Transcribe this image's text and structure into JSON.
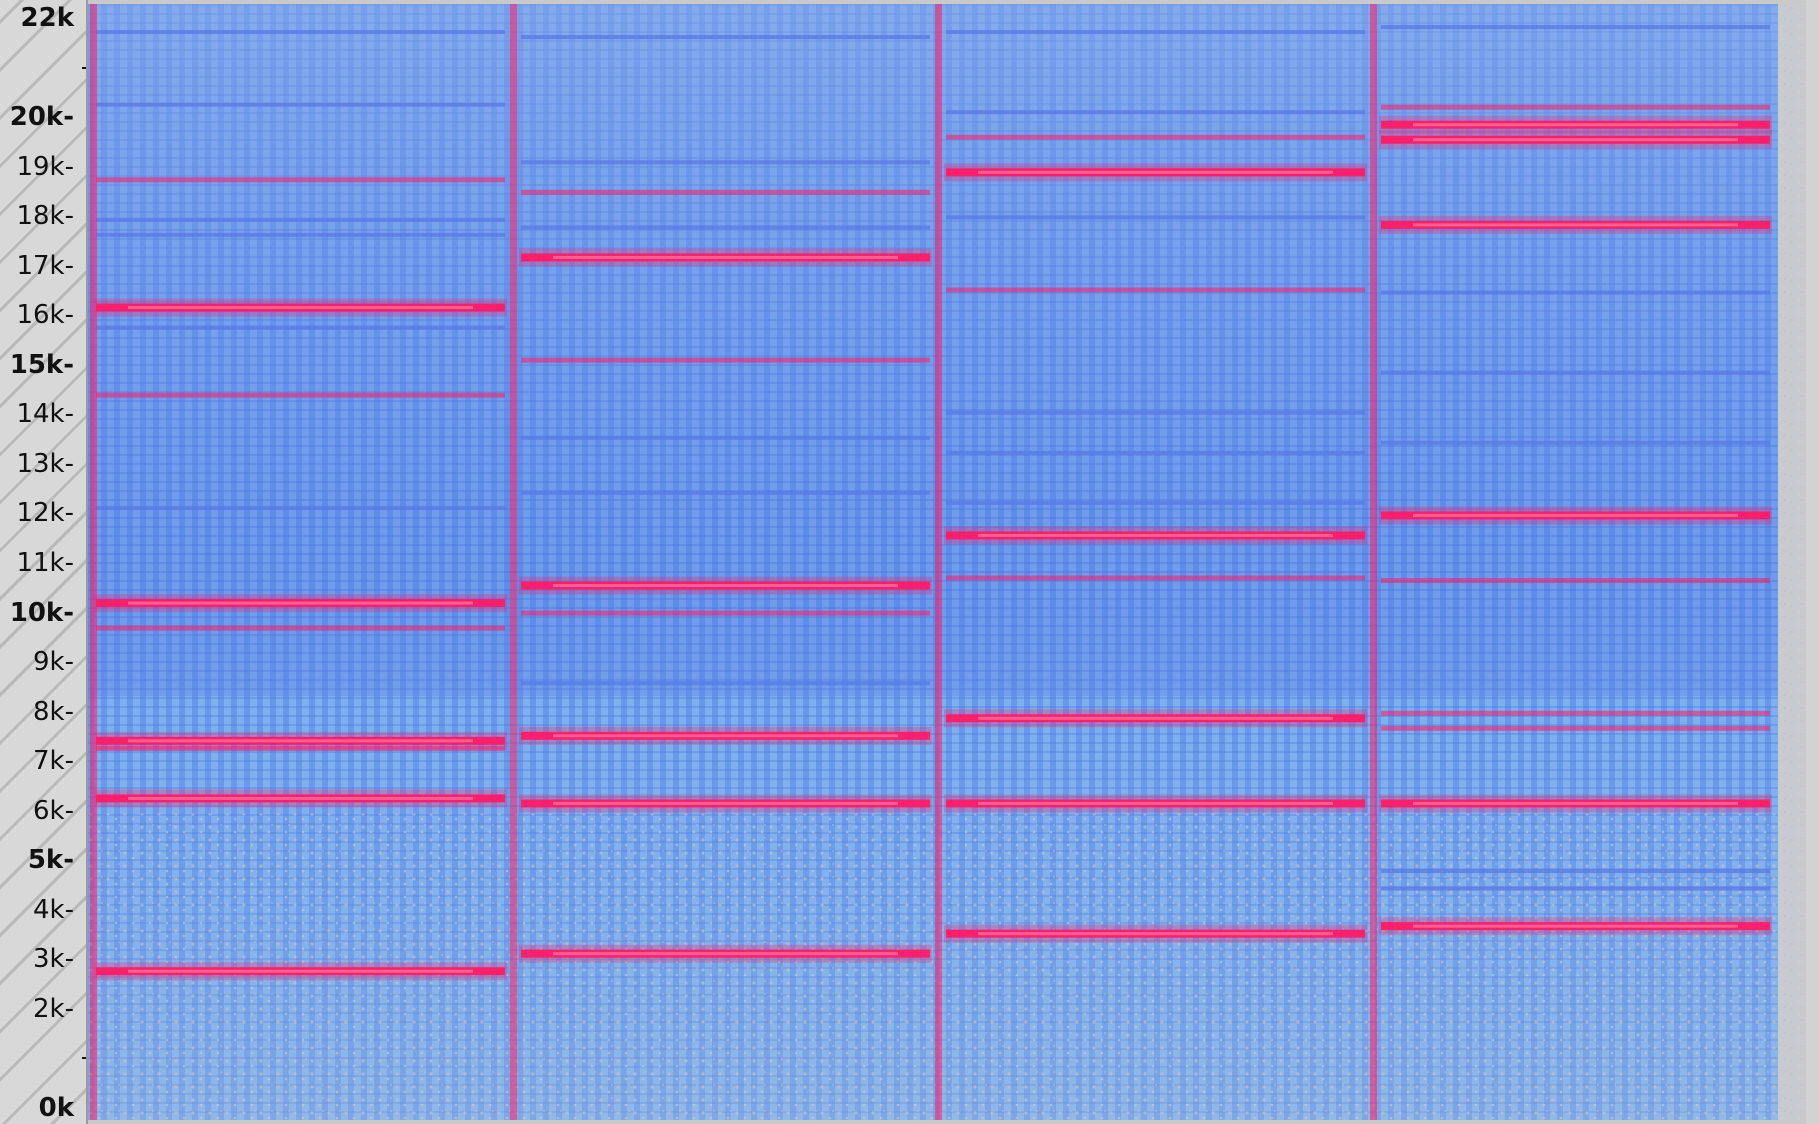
{
  "window": {
    "title": ""
  },
  "frequency_ruler": {
    "unit": "Hz",
    "labels": [
      {
        "text": "22k",
        "hz": 22000,
        "major": true
      },
      {
        "text": "20k-",
        "hz": 20000,
        "major": true
      },
      {
        "text": "19k-",
        "hz": 19000,
        "major": false
      },
      {
        "text": "18k-",
        "hz": 18000,
        "major": false
      },
      {
        "text": "17k-",
        "hz": 17000,
        "major": false
      },
      {
        "text": "16k-",
        "hz": 16000,
        "major": false
      },
      {
        "text": "15k-",
        "hz": 15000,
        "major": true
      },
      {
        "text": "14k-",
        "hz": 14000,
        "major": false
      },
      {
        "text": "13k-",
        "hz": 13000,
        "major": false
      },
      {
        "text": "12k-",
        "hz": 12000,
        "major": false
      },
      {
        "text": "11k-",
        "hz": 11000,
        "major": false
      },
      {
        "text": "10k-",
        "hz": 10000,
        "major": true
      },
      {
        "text": "9k-",
        "hz": 9000,
        "major": false
      },
      {
        "text": "8k-",
        "hz": 8000,
        "major": false
      },
      {
        "text": "7k-",
        "hz": 7000,
        "major": false
      },
      {
        "text": "6k-",
        "hz": 6000,
        "major": false
      },
      {
        "text": "5k-",
        "hz": 5000,
        "major": true
      },
      {
        "text": "4k-",
        "hz": 4000,
        "major": false
      },
      {
        "text": "3k-",
        "hz": 3000,
        "major": false
      },
      {
        "text": "2k-",
        "hz": 2000,
        "major": false
      },
      {
        "text": "0k",
        "hz": 0,
        "major": true
      }
    ],
    "minor_ticks_hz": [
      21000,
      1000
    ]
  },
  "spectrogram": {
    "freq_range_hz": [
      0,
      22000
    ],
    "colors": {
      "background": "#bdbdbd",
      "energy_low": "#78aef0",
      "energy_mid": "#5a78e6",
      "energy_high": "#ff1a66",
      "energy_peak": "#ff6f9a"
    },
    "segments": [
      {
        "strong_tones_hz": [
          16100,
          10200,
          7450,
          6300,
          2850
        ],
        "medium_tones_hz": [
          18650,
          14350,
          9700,
          7300
        ],
        "weak_tones_hz": [
          21600,
          20150,
          17850,
          17550,
          12100,
          15700
        ]
      },
      {
        "strong_tones_hz": [
          17100,
          10550,
          7550,
          6200,
          3200
        ],
        "medium_tones_hz": [
          18400,
          10000,
          15050
        ],
        "weak_tones_hz": [
          21500,
          19000,
          17700,
          13500,
          12400,
          8600
        ]
      },
      {
        "strong_tones_hz": [
          18800,
          11550,
          7900,
          6200,
          3600
        ],
        "medium_tones_hz": [
          10700,
          19500,
          16450
        ],
        "weak_tones_hz": [
          21600,
          20000,
          17900,
          14000,
          13200,
          12200
        ]
      },
      {
        "strong_tones_hz": [
          19450,
          19750,
          17750,
          11950,
          6200,
          3750
        ],
        "medium_tones_hz": [
          20100,
          10650,
          8000,
          7700
        ],
        "weak_tones_hz": [
          21700,
          16400,
          14800,
          13400,
          4850,
          4500
        ]
      }
    ]
  }
}
